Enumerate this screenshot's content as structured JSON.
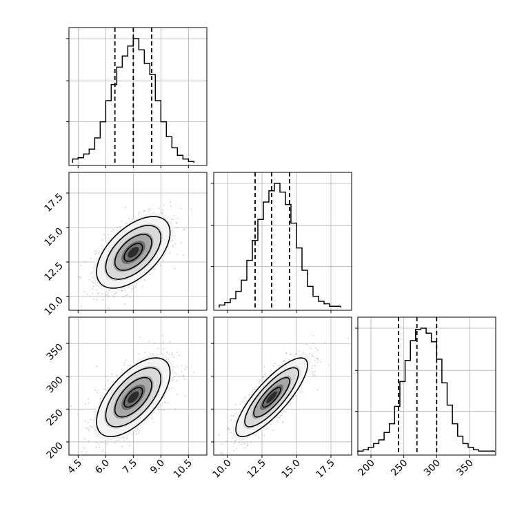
{
  "chart_data": {
    "type": "corner",
    "variables": [
      {
        "label": "",
        "range": [
          4.0,
          11.5
        ],
        "ticks": [
          4.5,
          6.0,
          7.5,
          9.0,
          10.5
        ],
        "tick_labels": [
          "4.5",
          "6.0",
          "7.5",
          "9.0",
          "10.5"
        ],
        "quantiles": [
          6.5,
          7.5,
          8.5
        ],
        "histogram": {
          "bin_edges": [
            4.2,
            4.5,
            4.8,
            5.1,
            5.4,
            5.7,
            6.0,
            6.3,
            6.6,
            6.9,
            7.2,
            7.5,
            7.8,
            8.1,
            8.4,
            8.7,
            9.0,
            9.3,
            9.6,
            9.9,
            10.2,
            10.5,
            10.8
          ],
          "values": [
            0.03,
            0.04,
            0.07,
            0.11,
            0.2,
            0.33,
            0.5,
            0.63,
            0.77,
            0.86,
            0.94,
            1.0,
            0.91,
            0.8,
            0.71,
            0.5,
            0.33,
            0.21,
            0.12,
            0.06,
            0.03,
            0.01
          ]
        }
      },
      {
        "label": "",
        "range": [
          9.0,
          19.0
        ],
        "ticks": [
          10.0,
          12.5,
          15.0,
          17.5
        ],
        "tick_labels": [
          "10.0",
          "12.5",
          "15.0",
          "17.5"
        ],
        "quantiles": [
          12.0,
          13.2,
          14.5
        ],
        "histogram": {
          "bin_edges": [
            9.4,
            9.8,
            10.2,
            10.6,
            11.0,
            11.4,
            11.8,
            12.2,
            12.6,
            13.0,
            13.4,
            13.8,
            14.2,
            14.6,
            15.0,
            15.4,
            15.8,
            16.2,
            16.6,
            17.0,
            17.4,
            17.8,
            18.2
          ],
          "values": [
            0.02,
            0.04,
            0.07,
            0.13,
            0.22,
            0.38,
            0.54,
            0.71,
            0.85,
            0.94,
            1.0,
            0.93,
            0.83,
            0.68,
            0.48,
            0.3,
            0.17,
            0.09,
            0.05,
            0.03,
            0.01,
            0.01
          ]
        }
      },
      {
        "label": "",
        "range": [
          180,
          390
        ],
        "ticks": [
          200,
          250,
          300,
          350
        ],
        "tick_labels": [
          "200",
          "250",
          "300",
          "350"
        ],
        "quantiles": [
          242,
          270,
          300
        ],
        "histogram": {
          "bin_edges": [
            180,
            188,
            196,
            204,
            212,
            220,
            228,
            236,
            244,
            252,
            260,
            268,
            276,
            284,
            292,
            300,
            308,
            316,
            324,
            332,
            340,
            348,
            356,
            364,
            372,
            380,
            388
          ],
          "values": [
            0.01,
            0.02,
            0.04,
            0.07,
            0.1,
            0.16,
            0.23,
            0.37,
            0.57,
            0.74,
            0.9,
            0.99,
            1.0,
            0.96,
            0.89,
            0.75,
            0.56,
            0.38,
            0.23,
            0.13,
            0.07,
            0.04,
            0.02,
            0.01,
            0.01,
            0.01
          ]
        }
      }
    ],
    "pairs": [
      {
        "x_var": 0,
        "y_var": 1,
        "mean": [
          7.5,
          13.2
        ],
        "std": [
          1.0,
          1.3
        ],
        "correlation": 0.55,
        "contour_levels": [
          0.5,
          1.0,
          1.5,
          2.0
        ]
      },
      {
        "x_var": 0,
        "y_var": 2,
        "mean": [
          7.5,
          268
        ],
        "std": [
          1.0,
          30
        ],
        "correlation": 0.62,
        "contour_levels": [
          0.5,
          1.0,
          1.5,
          2.0
        ]
      },
      {
        "x_var": 1,
        "y_var": 2,
        "mean": [
          13.2,
          268
        ],
        "std": [
          1.3,
          30
        ],
        "correlation": 0.82,
        "contour_levels": [
          0.5,
          1.0,
          1.5,
          2.0
        ]
      }
    ],
    "grid": true,
    "colors": {
      "line": "#000000",
      "quantile_line": "#000000",
      "grid": "#b0b0b0",
      "samples": "#8a8a8a",
      "density_dark": "#000000",
      "density_light": "#f4f4f4"
    }
  }
}
